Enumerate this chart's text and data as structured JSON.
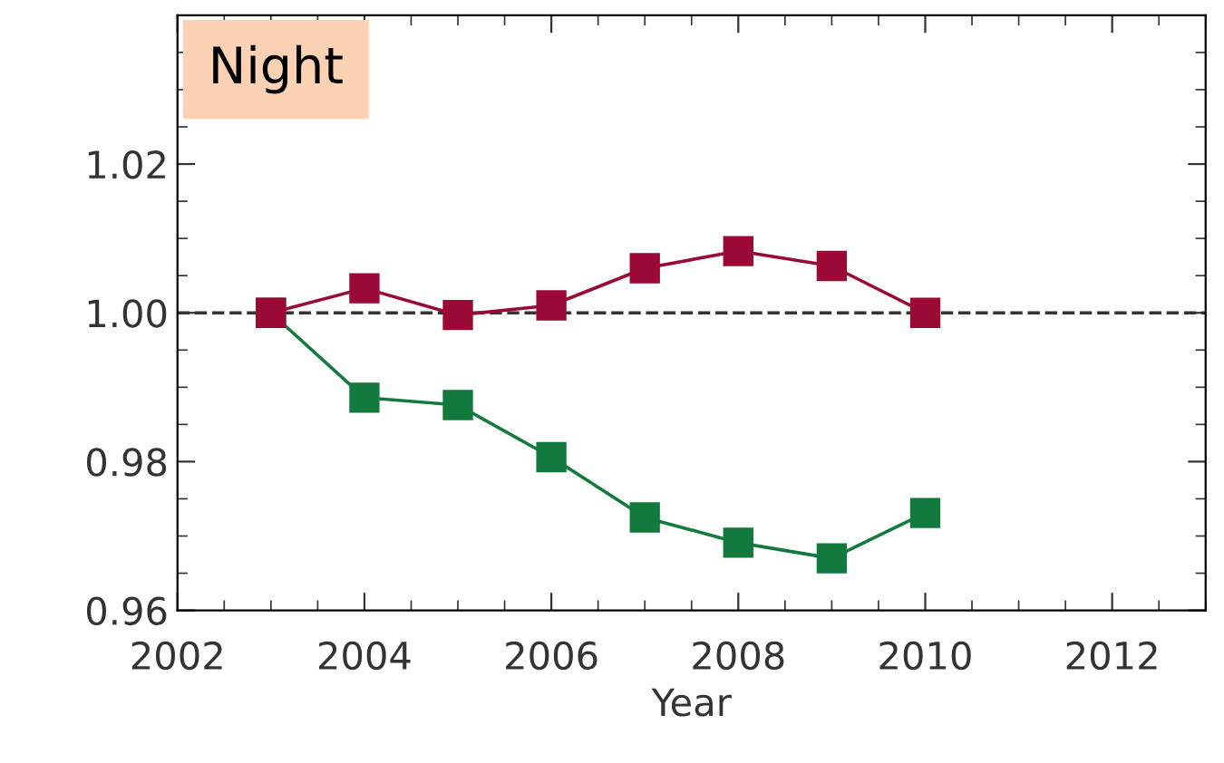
{
  "chart_data": {
    "type": "line",
    "xlabel": "Year",
    "annotations": [
      "Night"
    ],
    "x": [
      2003,
      2004,
      2005,
      2006,
      2007,
      2008,
      2009,
      2010
    ],
    "series": [
      {
        "color": "#9b0a35",
        "values": [
          1.0,
          1.0033,
          0.9997,
          1.001,
          1.006,
          1.0083,
          1.0063,
          1.0
        ]
      },
      {
        "color": "#127a3c",
        "values": [
          1.0,
          0.9886,
          0.9876,
          0.9806,
          0.9725,
          0.9691,
          0.967,
          0.9731
        ]
      }
    ],
    "marker": "square",
    "line_style": "solid",
    "grid": false,
    "legend": false,
    "xlim": [
      2002,
      2013
    ],
    "xticks": [
      2002,
      2004,
      2006,
      2008,
      2010,
      2012
    ],
    "ylim": [
      0.96,
      1.04
    ],
    "yticks": [
      {
        "value": 0.96,
        "label": "0.96"
      },
      {
        "value": 0.98,
        "label": "0.98"
      },
      {
        "value": 1.0,
        "label": "1.00"
      },
      {
        "value": 1.02,
        "label": "1.02"
      }
    ],
    "ref_lines": [
      {
        "axis": "y",
        "value": 1.0,
        "color": "#333333",
        "line_style": "dashed"
      }
    ]
  }
}
